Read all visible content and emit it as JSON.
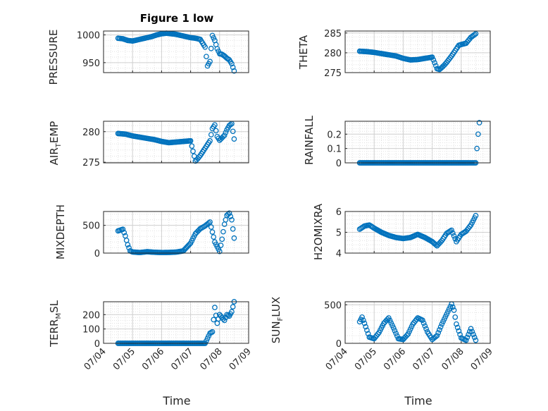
{
  "figure_title": "Figure 1 low",
  "chart_data": [
    {
      "type": "scatter",
      "ylabel": "PRESSURE",
      "ylim": [
        932,
        1007
      ],
      "yticks": [
        950,
        1000
      ],
      "ytick_labels": [
        "950",
        "1000"
      ],
      "x": [
        "07/04 12:00",
        "07/04 16:00",
        "07/04 20:00",
        "07/05 00:00",
        "07/05 04:00",
        "07/05 08:00",
        "07/05 12:00",
        "07/05 16:00",
        "07/05 20:00",
        "07/06 00:00",
        "07/06 04:00",
        "07/06 08:00",
        "07/06 12:00",
        "07/06 16:00",
        "07/06 20:00",
        "07/07 00:00",
        "07/07 04:00",
        "07/07 08:00",
        "07/07 12:00",
        "07/07 14:00",
        "07/07 16:00",
        "07/07 18:00",
        "07/07 20:00",
        "07/07 22:00",
        "07/08 00:00",
        "07/08 02:00",
        "07/08 04:00",
        "07/08 06:00",
        "07/08 08:00",
        "07/08 10:00",
        "07/08 12:00"
      ],
      "values": [
        994,
        993,
        990,
        989,
        991,
        993,
        995,
        997,
        1000,
        1002,
        1003,
        1002,
        1001,
        999,
        997,
        995,
        994,
        992,
        978,
        944,
        952,
        999,
        990,
        975,
        966,
        965,
        962,
        958,
        955,
        948,
        935
      ]
    },
    {
      "type": "scatter",
      "ylabel": "THETA",
      "ylim": [
        275,
        285.5
      ],
      "yticks": [
        275,
        280,
        285
      ],
      "ytick_labels": [
        "275",
        "280",
        "285"
      ],
      "x": [
        "07/04 12:00",
        "07/04 18:00",
        "07/05 00:00",
        "07/05 06:00",
        "07/05 12:00",
        "07/05 18:00",
        "07/06 00:00",
        "07/06 06:00",
        "07/06 12:00",
        "07/06 18:00",
        "07/07 00:00",
        "07/07 02:00",
        "07/07 04:00",
        "07/07 06:00",
        "07/07 08:00",
        "07/07 10:00",
        "07/07 12:00",
        "07/07 14:00",
        "07/07 16:00",
        "07/07 18:00",
        "07/07 20:00",
        "07/07 22:00",
        "07/08 00:00",
        "07/08 04:00",
        "07/08 08:00",
        "07/08 12:00"
      ],
      "values": [
        280.4,
        280.3,
        280.1,
        279.8,
        279.5,
        279.2,
        278.6,
        278.2,
        278.3,
        278.6,
        278.9,
        277.5,
        276.0,
        275.8,
        276.3,
        276.9,
        277.6,
        278.4,
        279.2,
        280.1,
        281.0,
        281.9,
        282.1,
        282.4,
        283.9,
        284.8
      ]
    },
    {
      "type": "scatter",
      "ylabel": "AIR_TEMP",
      "ylim": [
        274.9,
        281.7
      ],
      "yticks": [
        275,
        280
      ],
      "ytick_labels": [
        "275",
        "280"
      ],
      "x": [
        "07/04 12:00",
        "07/04 18:00",
        "07/05 00:00",
        "07/05 06:00",
        "07/05 12:00",
        "07/05 18:00",
        "07/06 00:00",
        "07/06 06:00",
        "07/06 12:00",
        "07/06 18:00",
        "07/07 00:00",
        "07/07 02:00",
        "07/07 04:00",
        "07/07 06:00",
        "07/07 08:00",
        "07/07 10:00",
        "07/07 12:00",
        "07/07 14:00",
        "07/07 16:00",
        "07/07 18:00",
        "07/07 20:00",
        "07/07 22:00",
        "07/08 00:00",
        "07/08 02:00",
        "07/08 04:00",
        "07/08 06:00",
        "07/08 08:00",
        "07/08 10:00",
        "07/08 12:00"
      ],
      "values": [
        279.7,
        279.6,
        279.3,
        279.1,
        278.9,
        278.7,
        278.4,
        278.2,
        278.3,
        278.4,
        278.5,
        276.8,
        275.2,
        275.6,
        276.1,
        276.7,
        277.3,
        277.9,
        278.5,
        280.5,
        281.1,
        279.2,
        278.6,
        279.0,
        279.4,
        280.3,
        281.0,
        281.3,
        278.8
      ]
    },
    {
      "type": "scatter",
      "ylabel": "RAINFALL",
      "ylim": [
        0,
        0.29
      ],
      "yticks": [
        0,
        0.1,
        0.2
      ],
      "ytick_labels": [
        "0",
        "0.1",
        "0.2"
      ],
      "x": [
        "07/04 12:00",
        "07/04 18:00",
        "07/05 00:00",
        "07/05 06:00",
        "07/05 12:00",
        "07/05 18:00",
        "07/06 00:00",
        "07/06 06:00",
        "07/06 12:00",
        "07/06 18:00",
        "07/07 00:00",
        "07/07 06:00",
        "07/07 12:00",
        "07/07 18:00",
        "07/08 00:00",
        "07/08 06:00",
        "07/08 08:00",
        "07/08 10:00",
        "07/08 12:00",
        "07/08 13:00",
        "07/08 14:00",
        "07/08 15:00"
      ],
      "values": [
        0,
        0,
        0,
        0,
        0,
        0,
        0,
        0,
        0,
        0,
        0,
        0,
        0,
        0,
        0,
        0,
        0,
        0,
        0,
        0.1,
        0.2,
        0.28
      ]
    },
    {
      "type": "scatter",
      "ylabel": "MIXDEPTH",
      "ylim": [
        0,
        750
      ],
      "yticks": [
        0,
        500
      ],
      "ytick_labels": [
        "0",
        "500"
      ],
      "x": [
        "07/04 12:00",
        "07/04 16:00",
        "07/04 18:00",
        "07/04 20:00",
        "07/04 22:00",
        "07/05 00:00",
        "07/05 06:00",
        "07/05 12:00",
        "07/05 18:00",
        "07/06 00:00",
        "07/06 06:00",
        "07/06 12:00",
        "07/06 18:00",
        "07/07 00:00",
        "07/07 04:00",
        "07/07 08:00",
        "07/07 12:00",
        "07/07 16:00",
        "07/07 20:00",
        "07/08 00:00",
        "07/08 02:00",
        "07/08 04:00",
        "07/08 06:00",
        "07/08 08:00",
        "07/08 10:00",
        "07/08 12:00"
      ],
      "values": [
        400,
        430,
        310,
        150,
        40,
        20,
        10,
        25,
        15,
        10,
        12,
        18,
        40,
        180,
        350,
        440,
        490,
        560,
        200,
        30,
        250,
        520,
        680,
        720,
        600,
        270
      ]
    },
    {
      "type": "scatter",
      "ylabel": "H2OMIXRA",
      "ylim": [
        4,
        6
      ],
      "yticks": [
        4,
        5,
        6
      ],
      "ytick_labels": [
        "4",
        "5",
        "6"
      ],
      "x": [
        "07/04 12:00",
        "07/04 16:00",
        "07/04 20:00",
        "07/05 00:00",
        "07/05 06:00",
        "07/05 12:00",
        "07/05 18:00",
        "07/06 00:00",
        "07/06 06:00",
        "07/06 12:00",
        "07/06 18:00",
        "07/07 00:00",
        "07/07 04:00",
        "07/07 08:00",
        "07/07 12:00",
        "07/07 16:00",
        "07/07 20:00",
        "07/08 00:00",
        "07/08 04:00",
        "07/08 08:00",
        "07/08 12:00"
      ],
      "values": [
        5.15,
        5.3,
        5.35,
        5.2,
        5.0,
        4.85,
        4.75,
        4.7,
        4.75,
        4.9,
        4.75,
        4.55,
        4.35,
        4.6,
        4.95,
        5.1,
        4.55,
        4.9,
        5.05,
        5.35,
        5.8
      ]
    },
    {
      "type": "scatter",
      "ylabel": "TERR_MSL",
      "ylim": [
        0,
        290
      ],
      "yticks": [
        0,
        100,
        200
      ],
      "ytick_labels": [
        "0",
        "100",
        "200"
      ],
      "x": [
        "07/04 12:00",
        "07/04 18:00",
        "07/05 00:00",
        "07/05 06:00",
        "07/05 12:00",
        "07/05 18:00",
        "07/06 00:00",
        "07/06 06:00",
        "07/06 12:00",
        "07/06 18:00",
        "07/07 00:00",
        "07/07 06:00",
        "07/07 12:00",
        "07/07 16:00",
        "07/07 18:00",
        "07/07 20:00",
        "07/07 22:00",
        "07/08 00:00",
        "07/08 02:00",
        "07/08 04:00",
        "07/08 06:00",
        "07/08 08:00",
        "07/08 10:00",
        "07/08 12:00"
      ],
      "values": [
        0,
        0,
        0,
        0,
        0,
        0,
        0,
        0,
        0,
        0,
        0,
        0,
        0,
        70,
        80,
        250,
        140,
        200,
        180,
        160,
        200,
        190,
        220,
        290
      ]
    },
    {
      "type": "scatter",
      "ylabel": "SUN_FLUX",
      "ylim": [
        0,
        540
      ],
      "yticks": [
        0,
        500
      ],
      "ytick_labels": [
        "0",
        "500"
      ],
      "x": [
        "07/04 12:00",
        "07/04 14:00",
        "07/04 16:00",
        "07/04 18:00",
        "07/04 20:00",
        "07/05 00:00",
        "07/05 04:00",
        "07/05 08:00",
        "07/05 12:00",
        "07/05 16:00",
        "07/05 20:00",
        "07/06 00:00",
        "07/06 04:00",
        "07/06 08:00",
        "07/06 12:00",
        "07/06 16:00",
        "07/06 20:00",
        "07/07 00:00",
        "07/07 04:00",
        "07/07 08:00",
        "07/07 12:00",
        "07/07 16:00",
        "07/07 18:00",
        "07/07 20:00",
        "07/08 00:00",
        "07/08 04:00",
        "07/08 08:00",
        "07/08 12:00"
      ],
      "values": [
        280,
        340,
        260,
        170,
        80,
        60,
        140,
        260,
        330,
        200,
        60,
        50,
        120,
        250,
        330,
        300,
        150,
        50,
        100,
        250,
        380,
        510,
        430,
        250,
        70,
        40,
        190,
        40
      ]
    }
  ],
  "xaxis": {
    "tick_labels": [
      "07/04",
      "07/05",
      "07/06",
      "07/07",
      "07/08",
      "07/09"
    ],
    "xlabel": "Time"
  },
  "colors": {
    "marker": "#0072BD",
    "grid": "#d9d9d9",
    "axis": "#262626"
  }
}
